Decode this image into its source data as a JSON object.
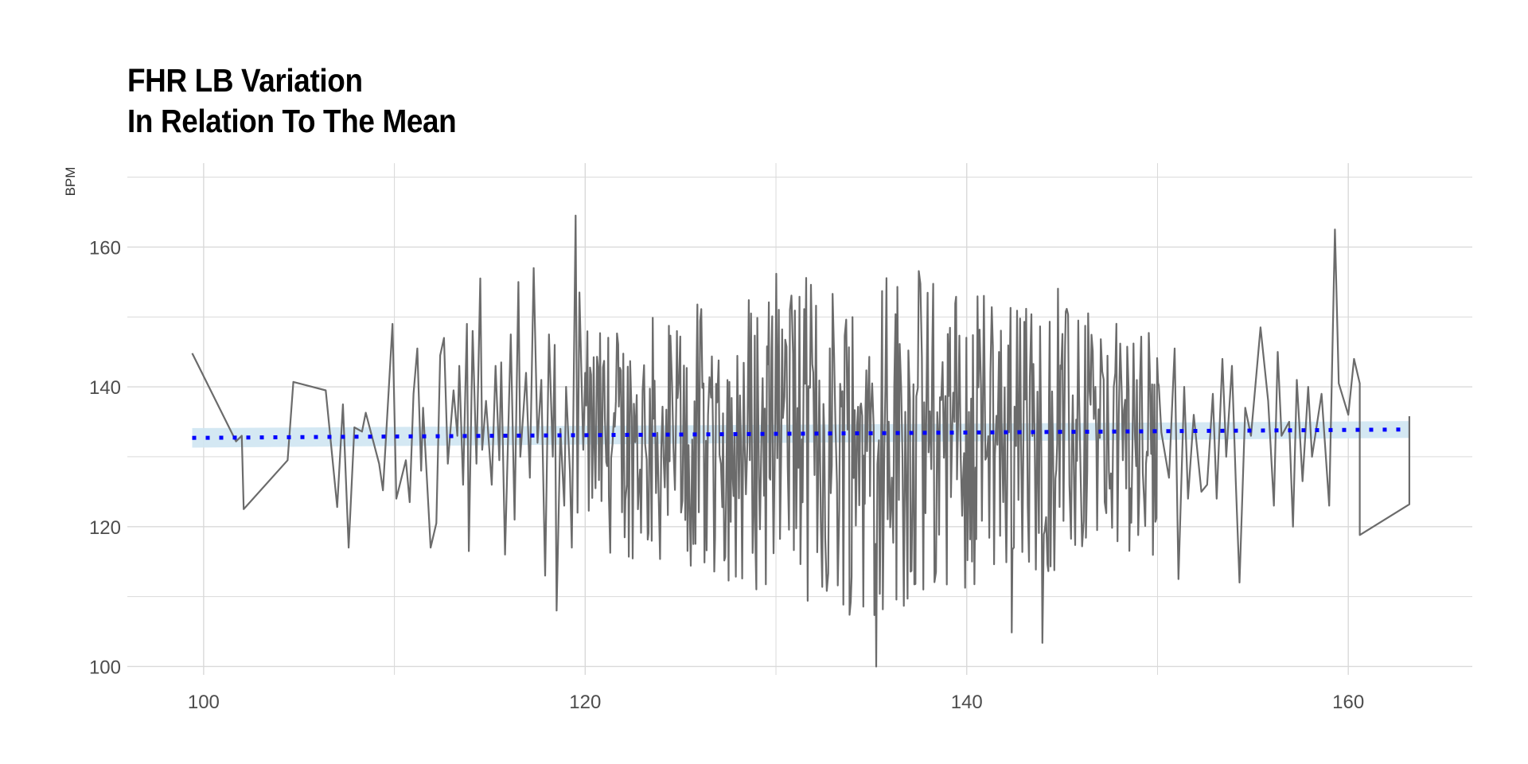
{
  "chart_data": {
    "type": "line",
    "title": [
      "FHR LB Variation",
      "In Relation To The Mean"
    ],
    "xlabel": "",
    "ylabel": "BPM",
    "xlim": [
      96,
      166.5
    ],
    "ylim": [
      98.8,
      172
    ],
    "x_ticks": [
      100,
      120,
      140,
      160
    ],
    "x_tick_labels": [
      "100",
      "120",
      "140",
      "160"
    ],
    "y_ticks": [
      100,
      120,
      140,
      160
    ],
    "y_tick_labels": [
      "100",
      "120",
      "140",
      "160"
    ],
    "grid": true,
    "colors": {
      "line": "#6b6b6b",
      "trend": "#0000ff",
      "band": "#cfe5f2",
      "grid": "#d9d9d9",
      "tick_text": "#4d4d4d"
    },
    "mean_trend": {
      "style": "dotted",
      "x": [
        99.4,
        163.2
      ],
      "y": [
        132.7,
        133.9
      ],
      "band_half_width": [
        1.4,
        1.2
      ]
    },
    "series": [
      {
        "values_note_free": true,
        "points": [
          [
            99.4,
            144.8
          ],
          [
            101.7,
            132.2
          ],
          [
            102.0,
            133.0
          ],
          [
            102.1,
            122.5
          ],
          [
            104.4,
            129.5
          ],
          [
            104.7,
            140.7
          ],
          [
            106.4,
            139.5
          ],
          [
            107.0,
            122.8
          ],
          [
            107.3,
            137.5
          ],
          [
            107.6,
            117.0
          ],
          [
            107.9,
            134.2
          ],
          [
            108.3,
            133.6
          ],
          [
            108.5,
            136.3
          ],
          [
            109.2,
            129.0
          ],
          [
            109.4,
            125.2
          ],
          [
            109.9,
            149.0
          ],
          [
            110.1,
            124.0
          ],
          [
            110.6,
            129.5
          ],
          [
            110.8,
            123.5
          ],
          [
            111.0,
            139.0
          ],
          [
            111.2,
            145.5
          ],
          [
            111.4,
            128.0
          ],
          [
            111.5,
            137.0
          ],
          [
            111.9,
            117.0
          ],
          [
            112.2,
            120.5
          ],
          [
            112.4,
            144.5
          ],
          [
            112.6,
            147.0
          ],
          [
            112.8,
            129.0
          ],
          [
            113.1,
            139.5
          ],
          [
            113.3,
            133.0
          ],
          [
            113.4,
            143.0
          ],
          [
            113.6,
            126.0
          ],
          [
            113.8,
            149.0
          ],
          [
            113.9,
            116.5
          ],
          [
            114.1,
            148.0
          ],
          [
            114.3,
            129.0
          ],
          [
            114.5,
            155.5
          ],
          [
            114.6,
            131.0
          ],
          [
            114.8,
            138.0
          ],
          [
            115.1,
            126.0
          ],
          [
            115.3,
            143.0
          ],
          [
            115.5,
            129.5
          ],
          [
            115.6,
            143.5
          ],
          [
            115.8,
            116.0
          ],
          [
            116.1,
            147.5
          ],
          [
            116.3,
            121.0
          ],
          [
            116.5,
            155.0
          ],
          [
            116.6,
            130.0
          ],
          [
            116.9,
            142.0
          ],
          [
            117.1,
            127.0
          ],
          [
            117.3,
            157.0
          ],
          [
            117.5,
            132.0
          ],
          [
            117.7,
            141.0
          ],
          [
            117.9,
            113.0
          ],
          [
            118.1,
            147.5
          ],
          [
            118.3,
            130.0
          ],
          [
            118.4,
            146.0
          ],
          [
            118.5,
            108.0
          ],
          [
            118.7,
            134.0
          ],
          [
            118.9,
            123.0
          ],
          [
            119.0,
            140.0
          ],
          [
            119.2,
            128.0
          ],
          [
            119.3,
            117.0
          ],
          [
            119.5,
            164.5
          ],
          [
            119.6,
            122.0
          ],
          [
            119.7,
            153.5
          ],
          [
            119.9,
            131.0
          ],
          [
            120.0,
            142.0
          ]
        ]
      }
    ]
  }
}
